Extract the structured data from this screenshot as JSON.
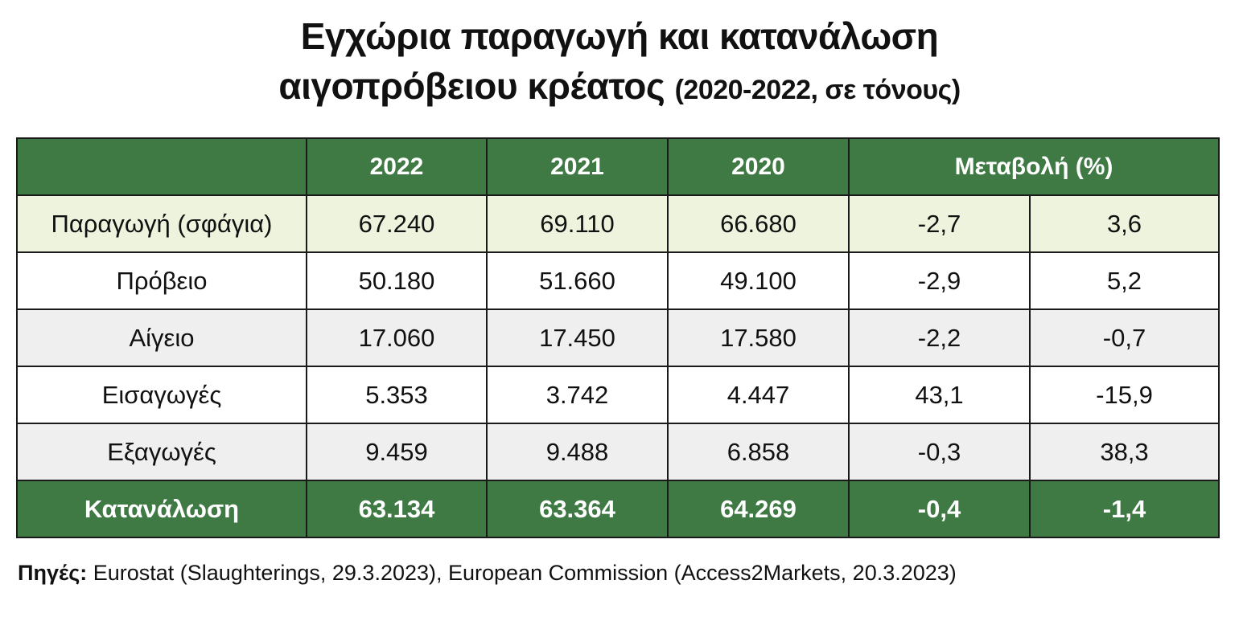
{
  "title": {
    "line1": "Εγχώρια παραγωγή και κατανάλωση",
    "line2_main": "αιγοπρόβειου κρέατος",
    "line2_sub": "(2020-2022, σε τόνους)"
  },
  "table": {
    "header": {
      "blank": "",
      "col_2022": "2022",
      "col_2021": "2021",
      "col_2020": "2020",
      "change": "Μεταβολή (%)"
    },
    "rows": [
      {
        "label": "Παραγωγή (σφάγια)",
        "v2022": "67.240",
        "v2021": "69.110",
        "v2020": "66.680",
        "ch1": "-2,7",
        "ch2": "3,6"
      },
      {
        "label": "Πρόβειο",
        "v2022": "50.180",
        "v2021": "51.660",
        "v2020": "49.100",
        "ch1": "-2,9",
        "ch2": "5,2"
      },
      {
        "label": "Αίγειο",
        "v2022": "17.060",
        "v2021": "17.450",
        "v2020": "17.580",
        "ch1": "-2,2",
        "ch2": "-0,7"
      },
      {
        "label": "Εισαγωγές",
        "v2022": "5.353",
        "v2021": "3.742",
        "v2020": "4.447",
        "ch1": "43,1",
        "ch2": "-15,9"
      },
      {
        "label": "Εξαγωγές",
        "v2022": "9.459",
        "v2021": "9.488",
        "v2020": "6.858",
        "ch1": "-0,3",
        "ch2": "38,3"
      },
      {
        "label": "Κατανάλωση",
        "v2022": "63.134",
        "v2021": "63.364",
        "v2020": "64.269",
        "ch1": "-0,4",
        "ch2": "-1,4"
      }
    ]
  },
  "source": {
    "label": "Πηγές:",
    "text": " Eurostat (Slaughterings, 29.3.2023), European Commission (Access2Markets, 20.3.2023)"
  },
  "colors": {
    "header_green": "#3f7a45",
    "production_row": "#eef3dd",
    "alt_row_grey": "#efefef"
  },
  "chart_data": {
    "type": "table",
    "title": "Εγχώρια παραγωγή και κατανάλωση αιγοπρόβειου κρέατος (2020-2022, σε τόνους)",
    "columns": [
      "",
      "2022",
      "2021",
      "2020",
      "Μεταβολή (%)",
      "Μεταβολή (%)"
    ],
    "rows": [
      [
        "Παραγωγή (σφάγια)",
        67240,
        69110,
        66680,
        -2.7,
        3.6
      ],
      [
        "Πρόβειο",
        50180,
        51660,
        49100,
        -2.9,
        5.2
      ],
      [
        "Αίγειο",
        17060,
        17450,
        17580,
        -2.2,
        -0.7
      ],
      [
        "Εισαγωγές",
        5353,
        3742,
        4447,
        43.1,
        -15.9
      ],
      [
        "Εξαγωγές",
        9459,
        9488,
        6858,
        -0.3,
        38.3
      ],
      [
        "Κατανάλωση",
        63134,
        63364,
        64269,
        -0.4,
        -1.4
      ]
    ]
  }
}
